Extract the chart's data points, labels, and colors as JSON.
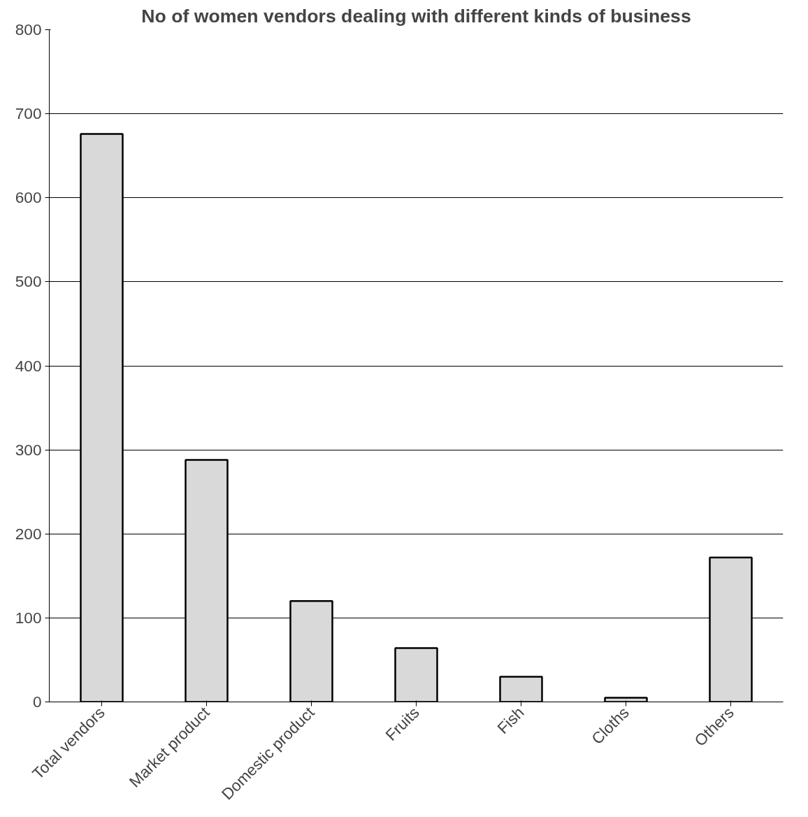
{
  "chart_data": {
    "type": "bar",
    "title": "No of women vendors dealing with different kinds of business",
    "categories": [
      "Total vendors",
      "Market product",
      "Domestic product",
      "Fruits",
      "Fish",
      "Cloths",
      "Others"
    ],
    "values": [
      676,
      288,
      120,
      64,
      30,
      5,
      172
    ],
    "color": "#d9d9d9",
    "ylim": [
      0,
      800
    ],
    "yticks": [
      0,
      100,
      200,
      300,
      400,
      500,
      600,
      700,
      800
    ],
    "grid": "y"
  }
}
